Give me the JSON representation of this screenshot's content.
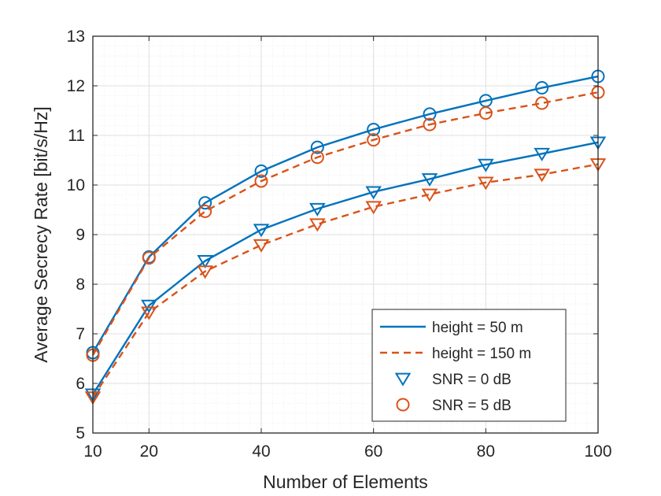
{
  "chart_data": {
    "type": "line",
    "title": "",
    "xlabel": "Number of Elements",
    "ylabel": "Average Secrecy Rate [bit/s/Hz]",
    "xlim": [
      10,
      100
    ],
    "ylim": [
      5,
      13
    ],
    "xticks": [
      10,
      20,
      40,
      60,
      80,
      100
    ],
    "yticks": [
      5,
      6,
      7,
      8,
      9,
      10,
      11,
      12,
      13
    ],
    "grid": "major and minor",
    "legend_position": "bottom-right",
    "x": [
      10,
      20,
      30,
      40,
      50,
      60,
      70,
      80,
      90,
      100
    ],
    "series": [
      {
        "name": "height = 50 m, SNR = 5 dB",
        "height": "50 m",
        "snr": "5 dB",
        "values": [
          6.62,
          8.55,
          9.64,
          10.28,
          10.76,
          11.12,
          11.43,
          11.7,
          11.96,
          12.19
        ]
      },
      {
        "name": "height = 150 m, SNR = 5 dB",
        "height": "150 m",
        "snr": "5 dB",
        "values": [
          6.57,
          8.53,
          9.47,
          10.08,
          10.56,
          10.91,
          11.22,
          11.45,
          11.65,
          11.87
        ]
      },
      {
        "name": "height = 50 m, SNR = 0 dB",
        "height": "50 m",
        "snr": "0 dB",
        "values": [
          5.78,
          7.57,
          8.47,
          9.1,
          9.52,
          9.86,
          10.12,
          10.41,
          10.63,
          10.86
        ]
      },
      {
        "name": "height = 150 m, SNR = 0 dB",
        "height": "150 m",
        "snr": "0 dB",
        "values": [
          5.72,
          7.43,
          8.26,
          8.79,
          9.21,
          9.56,
          9.81,
          10.05,
          10.21,
          10.42
        ]
      }
    ],
    "legend": [
      {
        "label": "height = 50 m",
        "style": "solid-line"
      },
      {
        "label": "height = 150 m",
        "style": "dashed-line"
      },
      {
        "label": "SNR = 0 dB",
        "style": "triangle-marker"
      },
      {
        "label": "SNR = 5 dB",
        "style": "circle-marker"
      }
    ],
    "colors": {
      "height_50m": "#0072BD",
      "height_150m": "#D95319",
      "grid": "#dfdfdf",
      "axis": "#262626"
    }
  }
}
